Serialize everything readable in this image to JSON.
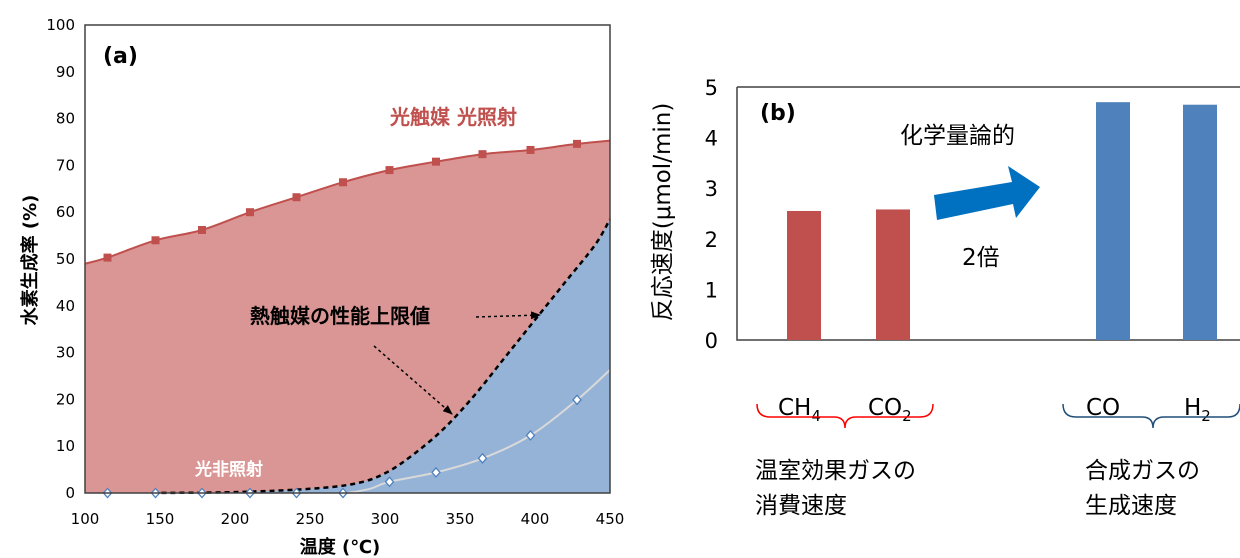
{
  "chart_data": [
    {
      "type": "area",
      "panel_label": "(a)",
      "xlabel": "温度 (℃)",
      "ylabel": "水素生成率 (%)",
      "xlim": [
        100,
        450
      ],
      "ylim": [
        0,
        100
      ],
      "xticks": [
        100,
        150,
        200,
        250,
        300,
        350,
        400,
        450
      ],
      "yticks": [
        0,
        10,
        20,
        30,
        40,
        50,
        60,
        70,
        80,
        90,
        100
      ],
      "grid": false,
      "series": [
        {
          "name": "光触媒 光照射",
          "color": "#c0504d",
          "fill": "#d99694",
          "marker": "square",
          "curve": [
            [
              100,
              49
            ],
            [
              115,
              50.3
            ],
            [
              147,
              54
            ],
            [
              178,
              56.2
            ],
            [
              210,
              60
            ],
            [
              241,
              63.2
            ],
            [
              272,
              66.4
            ],
            [
              303,
              69
            ],
            [
              334,
              70.8
            ],
            [
              365,
              72.4
            ],
            [
              397,
              73.3
            ],
            [
              428,
              74.6
            ],
            [
              450,
              75.3
            ]
          ],
          "x": [
            115,
            147,
            178,
            210,
            241,
            272,
            303,
            334,
            365,
            397,
            428
          ],
          "y": [
            50.3,
            54,
            56.2,
            60,
            63.2,
            66.4,
            69,
            70.8,
            72.4,
            73.3,
            74.6
          ]
        },
        {
          "name": "熱触媒の性能上限値",
          "color": "#000000",
          "fill": "#95b3d7",
          "style": "dashed",
          "curve": [
            [
              145,
              0
            ],
            [
              200,
              0.2
            ],
            [
              250,
              0.9
            ],
            [
              280,
              2
            ],
            [
              300,
              4.2
            ],
            [
              320,
              8.5
            ],
            [
              340,
              14
            ],
            [
              360,
              21
            ],
            [
              380,
              29
            ],
            [
              400,
              37
            ],
            [
              420,
              45
            ],
            [
              440,
              53
            ],
            [
              450,
              58.5
            ]
          ]
        },
        {
          "name": "光非照射",
          "color": "#d9d9d9",
          "marker": "diamond",
          "curve": [
            [
              275,
              0
            ],
            [
              290,
              0.9
            ],
            [
              303,
              2.4
            ],
            [
              334,
              4.4
            ],
            [
              365,
              7.4
            ],
            [
              397,
              12.3
            ],
            [
              428,
              19.9
            ],
            [
              450,
              26.3
            ]
          ],
          "x": [
            115,
            147,
            178,
            210,
            241,
            272,
            303,
            334,
            365,
            397,
            428
          ],
          "y": [
            0,
            0,
            0,
            0,
            0,
            0,
            2.4,
            4.4,
            7.4,
            12.3,
            19.9
          ]
        }
      ]
    },
    {
      "type": "bar",
      "panel_label": "(b)",
      "ylabel": "反応速度(μmol/min)",
      "ylim": [
        0,
        5
      ],
      "yticks": [
        0,
        1,
        2,
        3,
        4,
        5
      ],
      "grid": false,
      "categories": [
        "CH4",
        "CO2",
        "CO",
        "H2"
      ],
      "values": [
        2.55,
        2.58,
        4.7,
        4.65
      ],
      "colors": [
        "#c0504d",
        "#c0504d",
        "#4f81bd",
        "#4f81bd"
      ],
      "annotations": {
        "stoich": "化学量論的",
        "ratio": "2倍"
      },
      "groups": [
        {
          "line1": "温室効果ガスの",
          "line2": "消費速度",
          "color": "#ff0000"
        },
        {
          "line1": "合成ガスの",
          "line2": "生成速度",
          "color": "#1f4e79"
        }
      ]
    }
  ]
}
